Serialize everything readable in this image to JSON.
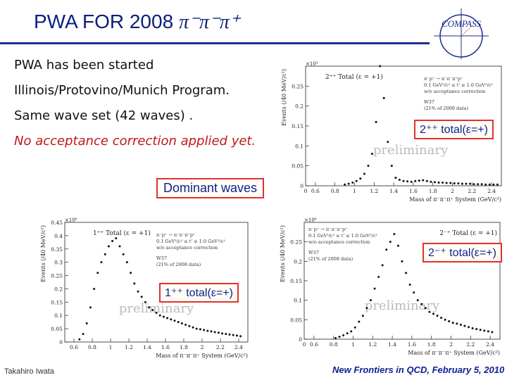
{
  "title": {
    "text": "PWA FOR  2008",
    "pi_text": "π⁻π⁻π⁺"
  },
  "logo": {
    "text": "COMPASS",
    "accent": "#1b2d8c",
    "red": "#c81e1e"
  },
  "lines": [
    "PWA has been started",
    "Illinois/Protovino/Munich Program.",
    "Same wave set (42 waves) .",
    "No acceptance correction applied yet."
  ],
  "badges": {
    "dominant": "Dominant waves",
    "w2pp": "2⁺⁺  total(ε=+)",
    "w2mp": "2⁻⁺  total(ε=+)",
    "w1pp": "1⁺⁺  total(ε=+)"
  },
  "footer": {
    "left": "Takahiro Iwata",
    "right": "New Frontiers in QCD, February 5, 2010"
  },
  "chart_data": [
    {
      "type": "scatter",
      "title": "2⁺⁺ Total (ε = +1)",
      "xlabel": "Mass of π⁻π⁻π⁺ System (GeV/c²)",
      "ylabel": "Events (/40 MeV/c²)",
      "y_exponent": "×10³",
      "xlim": [
        0.5,
        2.5
      ],
      "ylim": [
        0,
        0.3
      ],
      "xticks": [
        "0",
        "0.6",
        "0.8",
        "1",
        "1.2",
        "1.4",
        "1.6",
        "1.8",
        "2",
        "2.2",
        "2.4"
      ],
      "yticks": [
        "0",
        "0.05",
        "0.1",
        "0.15",
        "0.2",
        "0.25"
      ],
      "legend": [
        "π⁻p⁺ → π⁻π⁻π⁺p⁺",
        "0.1 GeV²/c² ≤ t' ≤ 1.0 GeV²/c²",
        "w/o acceptance correction",
        "W37",
        "(21% of 2008 data)"
      ],
      "watermark": "preliminary",
      "x": [
        0.9,
        0.94,
        0.98,
        1.02,
        1.06,
        1.1,
        1.14,
        1.18,
        1.22,
        1.26,
        1.3,
        1.34,
        1.38,
        1.42,
        1.46,
        1.5,
        1.54,
        1.58,
        1.62,
        1.66,
        1.7,
        1.74,
        1.78,
        1.82,
        1.86,
        1.9,
        1.94,
        1.98,
        2.02,
        2.06,
        2.1,
        2.14,
        2.18,
        2.22,
        2.26,
        2.3,
        2.34,
        2.38,
        2.42,
        2.46
      ],
      "y": [
        0.003,
        0.005,
        0.008,
        0.012,
        0.018,
        0.03,
        0.05,
        0.08,
        0.16,
        0.3,
        0.22,
        0.11,
        0.05,
        0.02,
        0.015,
        0.012,
        0.011,
        0.01,
        0.012,
        0.013,
        0.014,
        0.012,
        0.01,
        0.009,
        0.008,
        0.008,
        0.007,
        0.007,
        0.006,
        0.006,
        0.005,
        0.005,
        0.005,
        0.004,
        0.004,
        0.004,
        0.003,
        0.003,
        0.003,
        0.003
      ]
    },
    {
      "type": "scatter",
      "title": "1⁺⁺ Total (ε = +1)",
      "xlabel": "Mass of π⁻π⁻π⁺ System (GeV/c²)",
      "ylabel": "Events (/40 MeV/c²)",
      "y_exponent": "×10⁶",
      "xlim": [
        0.5,
        2.5
      ],
      "ylim": [
        0,
        0.45
      ],
      "xticks": [
        "0.6",
        "0.8",
        "1",
        "1.2",
        "1.4",
        "1.6",
        "1.8",
        "2",
        "2.2",
        "2.4"
      ],
      "yticks": [
        "0",
        "0.05",
        "0.1",
        "0.15",
        "0.2",
        "0.25",
        "0.3",
        "0.35",
        "0.4",
        "0.45"
      ],
      "legend": [
        "π⁻p⁺ → π⁻π⁻π⁺p⁺",
        "0.1 GeV²/c² ≤ t' ≤ 1.0 GeV²/c²",
        "w/o acceptance correction",
        "W37",
        "(21% of 2008 data)"
      ],
      "watermark": "preliminary",
      "x": [
        0.66,
        0.7,
        0.74,
        0.78,
        0.82,
        0.86,
        0.9,
        0.94,
        0.98,
        1.02,
        1.06,
        1.1,
        1.14,
        1.18,
        1.22,
        1.26,
        1.3,
        1.34,
        1.38,
        1.42,
        1.46,
        1.5,
        1.54,
        1.58,
        1.62,
        1.66,
        1.7,
        1.74,
        1.78,
        1.82,
        1.86,
        1.9,
        1.94,
        1.98,
        2.02,
        2.06,
        2.1,
        2.14,
        2.18,
        2.22,
        2.26,
        2.3,
        2.34,
        2.38,
        2.42
      ],
      "y": [
        0.01,
        0.03,
        0.07,
        0.13,
        0.2,
        0.26,
        0.3,
        0.33,
        0.36,
        0.38,
        0.39,
        0.36,
        0.33,
        0.3,
        0.26,
        0.22,
        0.19,
        0.17,
        0.15,
        0.13,
        0.12,
        0.11,
        0.1,
        0.095,
        0.09,
        0.085,
        0.08,
        0.075,
        0.07,
        0.065,
        0.06,
        0.055,
        0.05,
        0.048,
        0.045,
        0.042,
        0.04,
        0.037,
        0.035,
        0.032,
        0.03,
        0.028,
        0.026,
        0.024,
        0.022
      ]
    },
    {
      "type": "scatter",
      "title": "2⁻⁺ Total (ε = +1)",
      "xlabel": "Mass of π⁻π⁻π⁺ System (GeV/c²)",
      "ylabel": "Events (/40 MeV/c²)",
      "y_exponent": "×10⁶",
      "xlim": [
        0.5,
        2.5
      ],
      "ylim": [
        0,
        0.3
      ],
      "xticks": [
        "0",
        "0.6",
        "0.8",
        "1",
        "1.2",
        "1.4",
        "1.6",
        "1.8",
        "2",
        "2.2",
        "2.4"
      ],
      "yticks": [
        "0",
        "0.05",
        "0.1",
        "0.15",
        "0.2",
        "0.25"
      ],
      "legend": [
        "π⁻p⁺ → π⁻π⁻π⁺p⁺",
        "0.1 GeV²/c² ≤ t' ≤ 1.0 GeV²/c²",
        "w/o acceptance correction",
        "W37",
        "(21% of 2008 data)"
      ],
      "watermark": "preliminary",
      "x": [
        0.82,
        0.86,
        0.9,
        0.94,
        0.98,
        1.02,
        1.06,
        1.1,
        1.14,
        1.18,
        1.22,
        1.26,
        1.3,
        1.34,
        1.38,
        1.42,
        1.46,
        1.5,
        1.54,
        1.58,
        1.62,
        1.66,
        1.7,
        1.74,
        1.78,
        1.82,
        1.86,
        1.9,
        1.94,
        1.98,
        2.02,
        2.06,
        2.1,
        2.14,
        2.18,
        2.22,
        2.26,
        2.3,
        2.34,
        2.38,
        2.42
      ],
      "y": [
        0.003,
        0.006,
        0.01,
        0.015,
        0.02,
        0.03,
        0.045,
        0.06,
        0.08,
        0.1,
        0.13,
        0.16,
        0.19,
        0.23,
        0.25,
        0.27,
        0.24,
        0.2,
        0.17,
        0.14,
        0.12,
        0.1,
        0.09,
        0.08,
        0.07,
        0.065,
        0.06,
        0.055,
        0.05,
        0.046,
        0.042,
        0.04,
        0.037,
        0.034,
        0.031,
        0.028,
        0.026,
        0.024,
        0.022,
        0.02,
        0.018
      ]
    }
  ]
}
